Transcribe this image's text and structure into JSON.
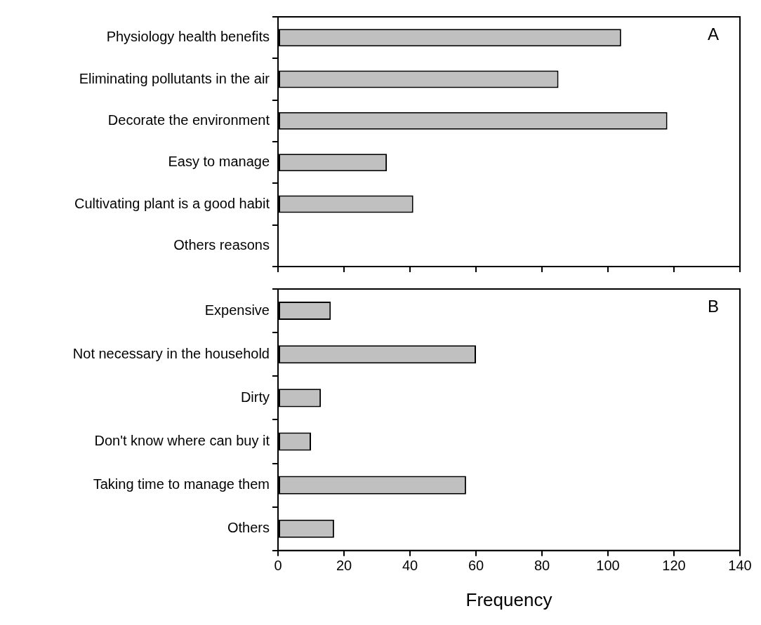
{
  "chart_data": [
    {
      "type": "bar",
      "orientation": "horizontal",
      "categories": [
        "Physiology health benefits",
        "Eliminating pollutants in the air",
        "Decorate the environment",
        "Easy to manage",
        "Cultivating plant is a good habit",
        "Others reasons"
      ],
      "values": [
        104,
        85,
        118,
        33,
        41,
        0
      ],
      "color": "#c0c0c0",
      "xlim": [
        0,
        140
      ],
      "xticks": [
        0,
        20,
        40,
        60,
        80,
        100,
        120,
        140
      ],
      "grid": false,
      "tick_labels": "y",
      "annotations": [
        "A"
      ]
    },
    {
      "type": "bar",
      "orientation": "horizontal",
      "categories": [
        "Expensive",
        "Not necessary in the household",
        "Dirty",
        "Don't know where can buy it",
        "Taking time to manage them",
        "Others"
      ],
      "values": [
        16,
        60,
        13,
        10,
        57,
        17
      ],
      "color": "#c0c0c0",
      "xlim": [
        0,
        140
      ],
      "xticks": [
        0,
        20,
        40,
        60,
        80,
        100,
        120,
        140
      ],
      "grid": false,
      "xlabel": "Frequency",
      "annotations": [
        "B"
      ]
    }
  ]
}
